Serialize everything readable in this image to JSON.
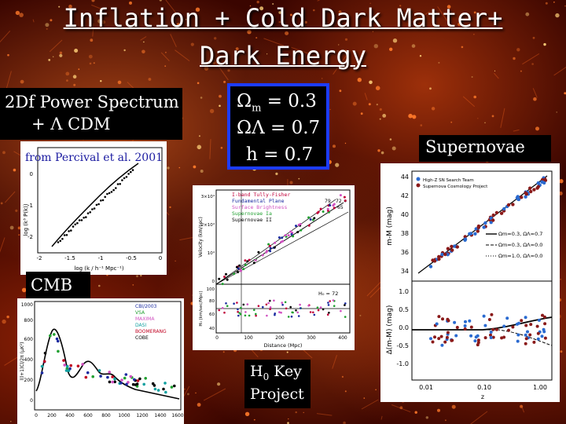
{
  "slide": {
    "title_line1": "Inflation + Cold Dark Matter+",
    "title_line2": "Dark Energy"
  },
  "power_spectrum": {
    "label_line1": "2Df Power Spectrum",
    "label_line2": "+ Λ CDM",
    "caption": "from Percival et al. 2001",
    "ylabel": "log (k³ P(k))",
    "xlabel": "log (k / h⁻¹ Mpc⁻¹)",
    "yticks": [
      "0",
      "-1",
      "-2"
    ],
    "xticks": [
      "-2",
      "-1.5",
      "-1",
      "-0.5",
      "0"
    ]
  },
  "parameters": {
    "omega_m_symbol": "Ω",
    "omega_m_sub": "m",
    "omega_m_value": " = 0.3",
    "omega_l_symbol": "ΩΛ",
    "omega_l_value": " = 0.7",
    "h_text": "h  = 0.7"
  },
  "supernovae": {
    "label": "Supernovae",
    "ylabel_top": "m-M (mag)",
    "ylabel_bottom": "Δ(m-M) (mag)",
    "xlabel": "z",
    "yticks_top": [
      "44",
      "42",
      "40",
      "38",
      "36",
      "34"
    ],
    "yticks_bottom": [
      "1.0",
      "0.5",
      "0.0",
      "-0.5",
      "-1.0"
    ],
    "xticks": [
      "0.01",
      "0.10",
      "1.00"
    ],
    "legend": [
      "High-Z SN Search Team",
      "Supernova Cosmology Project"
    ],
    "models": [
      "Ωm=0.3, ΩΛ=0.7",
      "Ωm=0.3, ΩΛ=0.0",
      "Ωm=1.0, ΩΛ=0.0"
    ]
  },
  "hubble": {
    "label_line1": "H",
    "label_sub": "0",
    "label_line1_rest": " Key",
    "label_line2": "Project",
    "legend": [
      "I-band Tully-Fisher",
      "Fundamental Plane",
      "Surface Brightness",
      "Supernovae Ia",
      "Supernovae II"
    ],
    "ylabel_top": "Velocity (km/sec)",
    "ylabel_bottom": "H₀ (km/sec/Mpc)",
    "xlabel": "Distance (Mpc)",
    "yticks_top": [
      "3×10⁴",
      "2×10⁴",
      "10⁴",
      "0"
    ],
    "yticks_bottom": [
      "100",
      "80",
      "60",
      "40"
    ],
    "xticks": [
      "0",
      "100",
      "200",
      "300",
      "400"
    ],
    "annot_top": [
      "79",
      "72",
      "65"
    ],
    "annot_bottom": "H₀ = 72"
  },
  "cmb": {
    "label": "CMB",
    "ylabel": "l(l+1)Cl/2π (μK²)",
    "yticks": [
      "1000",
      "800",
      "600",
      "400",
      "200",
      "0"
    ],
    "xticks": [
      "0",
      "200",
      "400",
      "600",
      "800",
      "1000",
      "1200",
      "1400",
      "1600"
    ],
    "legend": [
      "CBI/2003",
      "VSA",
      "MAXIMA",
      "DASI",
      "BOOMERANG",
      "COBE"
    ]
  },
  "colors": {
    "background": "#3a0500",
    "omega_border": "#1c3cff",
    "caption_text": "#1a1aa0"
  }
}
